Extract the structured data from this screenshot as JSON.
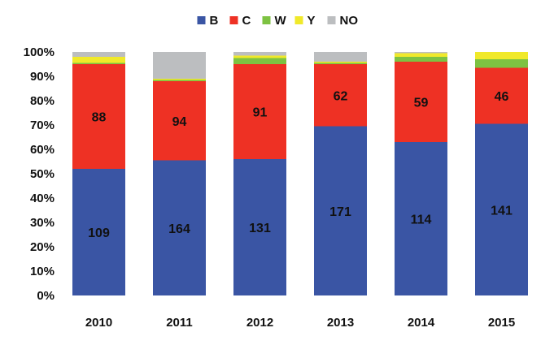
{
  "chart_data": {
    "type": "bar",
    "stacked": true,
    "normalized": true,
    "categories": [
      "2010",
      "2011",
      "2012",
      "2013",
      "2014",
      "2015"
    ],
    "series": [
      {
        "name": "B",
        "color": "#3a55a4",
        "percent": [
          52,
          55.5,
          56,
          69.5,
          63,
          70.5
        ],
        "labels": [
          "109",
          "164",
          "131",
          "171",
          "114",
          "141"
        ]
      },
      {
        "name": "C",
        "color": "#ee3124",
        "percent": [
          43,
          32.5,
          39,
          25.5,
          33,
          23
        ],
        "labels": [
          "88",
          "94",
          "91",
          "62",
          "59",
          "46"
        ]
      },
      {
        "name": "W",
        "color": "#7dc242",
        "percent": [
          0.5,
          0.5,
          2.5,
          0.5,
          2,
          3.5
        ],
        "labels": [
          "",
          "",
          "",
          "",
          "",
          ""
        ]
      },
      {
        "name": "Y",
        "color": "#f0e92a",
        "percent": [
          2.5,
          0.5,
          1,
          0.5,
          1.5,
          3
        ],
        "labels": [
          "",
          "",
          "",
          "",
          "",
          ""
        ]
      },
      {
        "name": "NO",
        "color": "#bcbec0",
        "percent": [
          2,
          11,
          1.5,
          4,
          0.5,
          0
        ],
        "labels": [
          "",
          "",
          "",
          "",
          "",
          ""
        ]
      }
    ],
    "y_ticks": [
      "0%",
      "10%",
      "20%",
      "30%",
      "40%",
      "50%",
      "60%",
      "70%",
      "80%",
      "90%",
      "100%"
    ],
    "ylim": [
      0,
      100
    ],
    "grid": false,
    "legend_position": "top-center",
    "title": "",
    "xlabel": "",
    "ylabel": ""
  }
}
